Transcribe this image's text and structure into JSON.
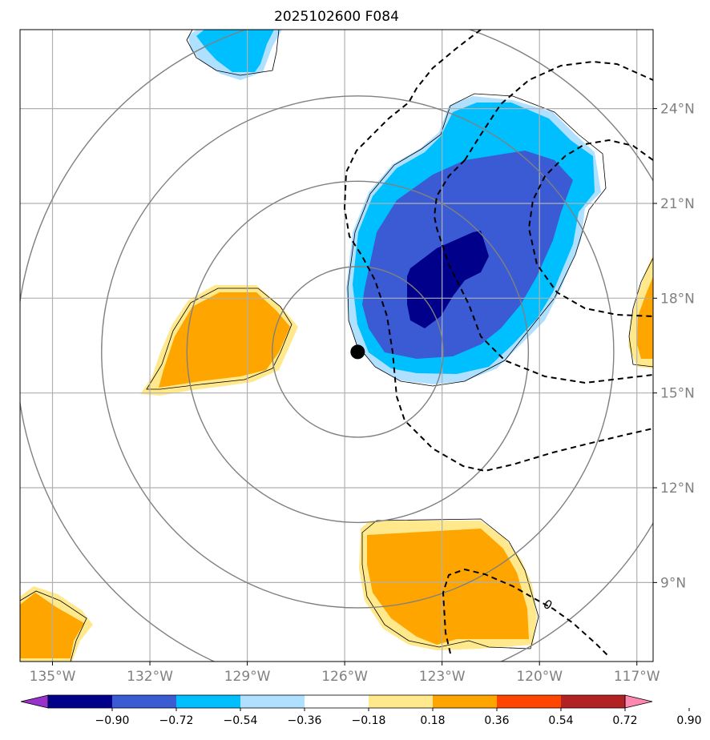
{
  "chart_data": {
    "type": "map-contour",
    "title": "2025102600 F084",
    "lon_range": [
      -136,
      -116.5
    ],
    "lat_range": [
      6.5,
      26.5
    ],
    "lon_ticks": [
      {
        "value": -135,
        "label": "135°W"
      },
      {
        "value": -132,
        "label": "132°W"
      },
      {
        "value": -129,
        "label": "129°W"
      },
      {
        "value": -126,
        "label": "126°W"
      },
      {
        "value": -123,
        "label": "123°W"
      },
      {
        "value": -120,
        "label": "120°W"
      },
      {
        "value": -117,
        "label": "117°W"
      }
    ],
    "lat_ticks": [
      {
        "value": 24,
        "label": "24°N"
      },
      {
        "value": 21,
        "label": "21°N"
      },
      {
        "value": 18,
        "label": "18°N"
      },
      {
        "value": 15,
        "label": "15°N"
      },
      {
        "value": 12,
        "label": "12°N"
      },
      {
        "value": 9,
        "label": "9°N"
      }
    ],
    "storm_center": {
      "lon": -125.6,
      "lat": 16.3
    },
    "range_rings_deg": [
      2.7,
      5.4,
      8.1,
      10.8
    ],
    "colorbar": {
      "levels": [
        "−0.90",
        "−0.72",
        "−0.54",
        "−0.36",
        "−0.18",
        "0.18",
        "0.36",
        "0.54",
        "0.72",
        "0.90"
      ],
      "colors": [
        "#9932cc",
        "#00008b",
        "#3a5bd3",
        "#00bfff",
        "#b0e0ff",
        "#ffffff",
        "#ffe98c",
        "#ffa500",
        "#ff4500",
        "#b22222",
        "#ff88b0"
      ],
      "extend": "both"
    },
    "dashed_contour_label": "0",
    "colors": {
      "very_negative": "#00008b",
      "negative": "#3a5bd3",
      "moderate_negative": "#00bfff",
      "weak_negative": "#b0e0ff",
      "weak_positive": "#ffe98c",
      "moderate_positive": "#ffa500",
      "grid": "#b0b0b0",
      "ring": "#808080"
    }
  }
}
